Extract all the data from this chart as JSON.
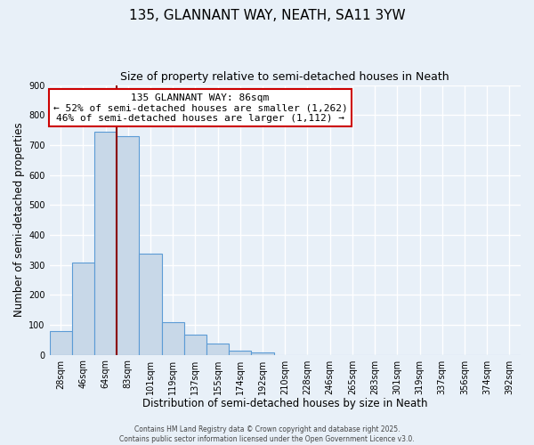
{
  "title": "135, GLANNANT WAY, NEATH, SA11 3YW",
  "subtitle": "Size of property relative to semi-detached houses in Neath",
  "xlabel": "Distribution of semi-detached houses by size in Neath",
  "ylabel": "Number of semi-detached properties",
  "bar_labels": [
    "28sqm",
    "46sqm",
    "64sqm",
    "83sqm",
    "101sqm",
    "119sqm",
    "137sqm",
    "155sqm",
    "174sqm",
    "192sqm",
    "210sqm",
    "228sqm",
    "246sqm",
    "265sqm",
    "283sqm",
    "301sqm",
    "319sqm",
    "337sqm",
    "356sqm",
    "374sqm",
    "392sqm"
  ],
  "bar_values": [
    80,
    308,
    743,
    730,
    338,
    108,
    67,
    38,
    13,
    8,
    0,
    0,
    0,
    0,
    0,
    0,
    0,
    0,
    0,
    0,
    0
  ],
  "bar_color": "#c8d8e8",
  "bar_edge_color": "#5b9bd5",
  "background_color": "#e8f0f8",
  "grid_color": "#ffffff",
  "annotation_box_text_line1": "135 GLANNANT WAY: 86sqm",
  "annotation_box_text_line2": "← 52% of semi-detached houses are smaller (1,262)",
  "annotation_box_text_line3": "46% of semi-detached houses are larger (1,112) →",
  "annotation_box_color": "#ffffff",
  "annotation_box_edge_color": "#cc0000",
  "red_line_color": "#8b0000",
  "ylim": [
    0,
    900
  ],
  "yticks": [
    0,
    100,
    200,
    300,
    400,
    500,
    600,
    700,
    800,
    900
  ],
  "footer_line1": "Contains HM Land Registry data © Crown copyright and database right 2025.",
  "footer_line2": "Contains public sector information licensed under the Open Government Licence v3.0.",
  "title_fontsize": 11,
  "subtitle_fontsize": 9,
  "tick_fontsize": 7,
  "ylabel_fontsize": 8.5,
  "xlabel_fontsize": 8.5,
  "annotation_fontsize": 8,
  "footer_fontsize": 5.5
}
